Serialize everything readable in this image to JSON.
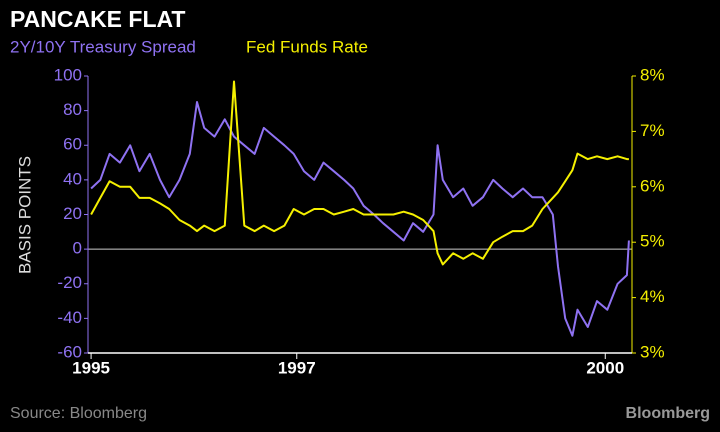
{
  "chart_data": {
    "type": "line",
    "title": "PANCAKE FLAT",
    "y_label": "BASIS POINTS",
    "source": "Source: Bloomberg",
    "brand": "Bloomberg",
    "x": [
      1995.0,
      1995.09,
      1995.18,
      1995.28,
      1995.38,
      1995.47,
      1995.57,
      1995.67,
      1995.76,
      1995.86,
      1995.96,
      1996.03,
      1996.1,
      1996.2,
      1996.3,
      1996.39,
      1996.49,
      1996.59,
      1996.68,
      1996.78,
      1996.88,
      1996.97,
      1997.07,
      1997.17,
      1997.26,
      1997.36,
      1997.46,
      1997.55,
      1997.65,
      1997.75,
      1997.84,
      1997.94,
      1998.04,
      1998.13,
      1998.23,
      1998.33,
      1998.37,
      1998.42,
      1998.52,
      1998.62,
      1998.71,
      1998.81,
      1998.91,
      1999.0,
      1999.1,
      1999.2,
      1999.29,
      1999.39,
      1999.49,
      1999.54,
      1999.61,
      1999.68,
      1999.73,
      1999.83,
      1999.92,
      2000.02,
      2000.12,
      2000.21,
      2000.23
    ],
    "series": [
      {
        "name": "2Y/10Y Treasury Spread",
        "color": "#8f72f2",
        "axis": "y",
        "values": [
          35,
          40,
          55,
          50,
          60,
          45,
          55,
          40,
          30,
          40,
          55,
          85,
          70,
          65,
          75,
          65,
          60,
          55,
          70,
          65,
          60,
          55,
          45,
          40,
          50,
          45,
          40,
          35,
          25,
          20,
          15,
          10,
          5,
          15,
          10,
          20,
          60,
          40,
          30,
          35,
          25,
          30,
          40,
          35,
          30,
          35,
          30,
          30,
          20,
          -10,
          -40,
          -50,
          -35,
          -45,
          -30,
          -35,
          -20,
          -15,
          5
        ]
      },
      {
        "name": "Fed Funds Rate",
        "color": "#f5f000",
        "axis": "y2",
        "values": [
          5.5,
          5.8,
          6.1,
          6.0,
          6.0,
          5.8,
          5.8,
          5.7,
          5.6,
          5.4,
          5.3,
          5.2,
          5.3,
          5.2,
          5.3,
          7.9,
          5.3,
          5.2,
          5.3,
          5.2,
          5.3,
          5.6,
          5.5,
          5.6,
          5.6,
          5.5,
          5.55,
          5.6,
          5.5,
          5.5,
          5.5,
          5.5,
          5.55,
          5.5,
          5.4,
          5.2,
          4.8,
          4.6,
          4.8,
          4.7,
          4.8,
          4.7,
          5.0,
          5.1,
          5.2,
          5.2,
          5.3,
          5.6,
          5.8,
          5.9,
          6.1,
          6.3,
          6.6,
          6.5,
          6.55,
          6.5,
          6.55,
          6.5,
          6.5
        ]
      }
    ],
    "xlim": [
      1994.97,
      2000.26
    ],
    "xticks": [
      1995,
      1997,
      2000
    ],
    "ylim": [
      -60,
      100
    ],
    "yticks": [
      -60,
      -40,
      -20,
      0,
      20,
      40,
      60,
      80,
      100
    ],
    "y2lim": [
      3,
      8
    ],
    "y2ticks": [
      {
        "value": 3,
        "label": "3%"
      },
      {
        "value": 4,
        "label": "4%"
      },
      {
        "value": 5,
        "label": "5%"
      },
      {
        "value": 6,
        "label": "6%"
      },
      {
        "value": 7,
        "label": "7%"
      },
      {
        "value": 8,
        "label": "8%"
      }
    ]
  }
}
